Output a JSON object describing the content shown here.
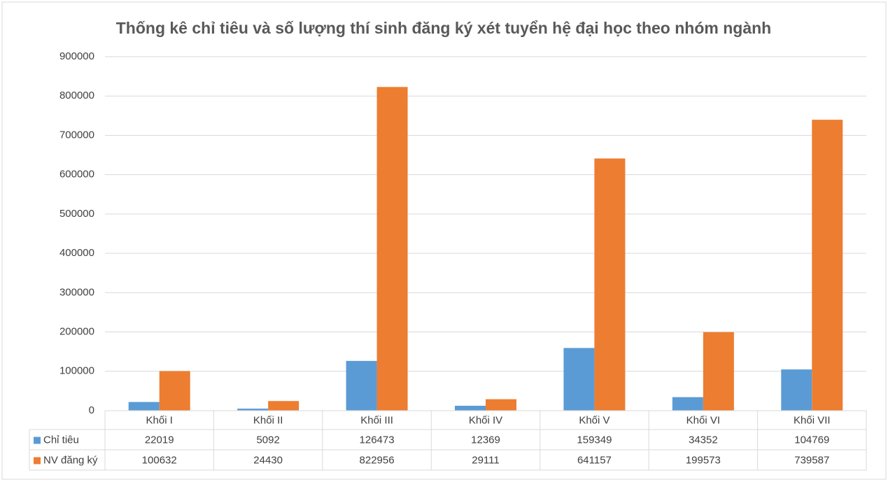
{
  "chart_data": {
    "type": "bar",
    "title": "Thống kê chỉ tiêu và số lượng thí sinh đăng ký xét tuyển hệ đại học theo nhóm ngành",
    "categories": [
      "Khối I",
      "Khối II",
      "Khối III",
      "Khối IV",
      "Khối V",
      "Khối VI",
      "Khối VII"
    ],
    "series": [
      {
        "name": "Chỉ tiêu",
        "color": "#5b9bd5",
        "values": [
          22019,
          5092,
          126473,
          12369,
          159349,
          34352,
          104769
        ]
      },
      {
        "name": "NV đăng ký",
        "color": "#ed7d31",
        "values": [
          100632,
          24430,
          822956,
          29111,
          641157,
          199573,
          739587
        ]
      }
    ],
    "ylim": [
      0,
      900000
    ],
    "yticks": [
      0,
      100000,
      200000,
      300000,
      400000,
      500000,
      600000,
      700000,
      800000,
      900000
    ],
    "grid": true
  }
}
